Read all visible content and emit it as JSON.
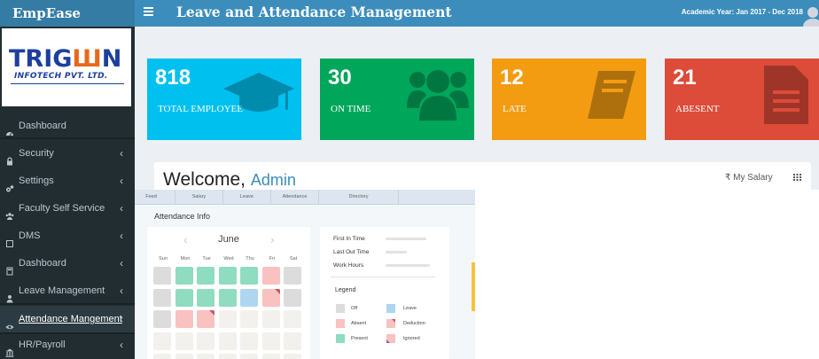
{
  "brand": "EmpEase",
  "logo": {
    "main_a": "TRIG",
    "main_b": "N",
    "sub": "INFOTECH PVT. LTD."
  },
  "topbar": {
    "title": "Leave and Attendance Management",
    "academic_year": "Academic Year: Jan 2017 - Dec 2018"
  },
  "sidebar": {
    "items": [
      {
        "label": "Dashboard",
        "icon": "dashboard-icon",
        "chevron": ""
      },
      {
        "label": "Security",
        "icon": "lock-icon",
        "chevron": "‹"
      },
      {
        "label": "Settings",
        "icon": "gears-icon",
        "chevron": "‹"
      },
      {
        "label": "Faculty Self Service",
        "icon": "users-icon",
        "chevron": "‹"
      },
      {
        "label": "DMS",
        "icon": "folder-icon",
        "chevron": "‹"
      },
      {
        "label": "Dashboard",
        "icon": "calculator-icon",
        "chevron": "‹"
      },
      {
        "label": "Leave Management",
        "icon": "user-icon",
        "chevron": "‹"
      },
      {
        "label": "Attendance Mangement",
        "icon": "eye-icon",
        "chevron": "‹"
      },
      {
        "label": "HR/Payroll",
        "icon": "bank-icon",
        "chevron": "‹"
      }
    ]
  },
  "stats": [
    {
      "value": "818",
      "label": "TOTAL EMPLOYEE",
      "color": "#00c0ef",
      "icon": "graduation-cap-icon"
    },
    {
      "value": "30",
      "label": "ON TIME",
      "color": "#00a65a",
      "icon": "users-group-icon"
    },
    {
      "value": "12",
      "label": "LATE",
      "color": "#f39c12",
      "icon": "book-icon"
    },
    {
      "value": "21",
      "label": "ABESENT",
      "color": "#dd4b39",
      "icon": "document-icon"
    }
  ],
  "welcome": {
    "greeting": "Welcome,",
    "user": "Admin",
    "salary_label": "My Salary",
    "currency_symbol": "₹"
  },
  "embed": {
    "tabs": [
      "Feed",
      "Salary",
      "Leave",
      "Attendance",
      "Directory"
    ],
    "title": "Attendance Info",
    "calendar": {
      "month": "June",
      "days": [
        "Sun",
        "Mon",
        "Tue",
        "Wed",
        "Thu",
        "Fri",
        "Sat"
      ],
      "rows": [
        [
          "off",
          "present",
          "present",
          "present",
          "present",
          "deduction",
          "off"
        ],
        [
          "off",
          "present",
          "present",
          "present",
          "leave",
          "deduction-ignored",
          "off"
        ],
        [
          "off",
          "deduction",
          "deduction-ignored",
          "blank",
          "blank",
          "blank",
          "blank"
        ],
        [
          "blank",
          "blank",
          "blank",
          "blank",
          "blank",
          "blank",
          "blank"
        ],
        [
          "blank",
          "blank",
          "blank",
          "blank",
          "blank",
          "blank",
          "blank"
        ]
      ]
    },
    "info": {
      "first_in": "First In Time",
      "last_out": "Last Out Time",
      "work_hours": "Work Hours"
    },
    "legend": {
      "title": "Legend",
      "items": [
        {
          "label": "Off",
          "color": "#dcdcdc"
        },
        {
          "label": "Leave",
          "color": "#aed6f1"
        },
        {
          "label": "Absent",
          "color": "#f9c1c0"
        },
        {
          "label": "Deduction",
          "color": "#f9c1c0"
        },
        {
          "label": "Present",
          "color": "#8fdcc0"
        },
        {
          "label": "Ignored",
          "color": "#f9c1c0"
        }
      ]
    }
  }
}
